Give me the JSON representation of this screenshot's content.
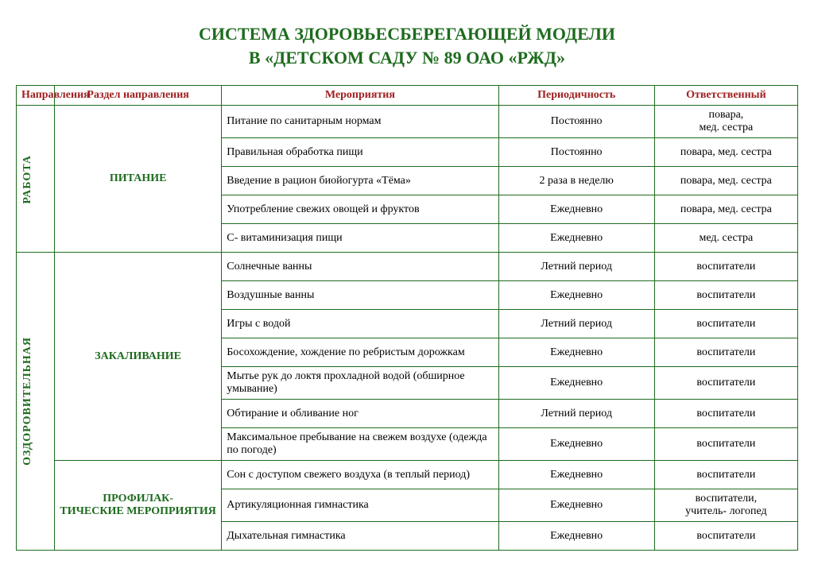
{
  "colors": {
    "title": "#1e6b1e",
    "header_text": "#a02020",
    "border": "#1e6b1e",
    "section_text": "#1e6b1e",
    "body_text": "#000000",
    "background": "#ffffff"
  },
  "title_line1": "СИСТЕМА ЗДОРОВЬЕСБЕРЕГАЮЩЕЙ МОДЕЛИ",
  "title_line2": "В «ДЕТСКОМ САДУ № 89 ОАО «РЖД»",
  "headers": {
    "direction": "Направления",
    "section": "Раздел направления",
    "activity": "Мероприятия",
    "period": "Периодичность",
    "responsible": "Ответственный"
  },
  "direction_labels": {
    "top": "РАБОТА",
    "bottom": "ОЗДОРОВИТЕЛЬНАЯ"
  },
  "sections": {
    "s1": "ПИТАНИЕ",
    "s2": "ЗАКАЛИВАНИЕ",
    "s3": "ПРОФИЛАК-\nТИЧЕСКИЕ МЕРОПРИЯТИЯ"
  },
  "rows": [
    {
      "activity": "Питание по санитарным нормам",
      "period": "Постоянно",
      "resp": "повара,\nмед. сестра"
    },
    {
      "activity": "Правильная обработка пищи",
      "period": "Постоянно",
      "resp": "повара, мед. сестра"
    },
    {
      "activity": "Введение в рацион биойогурта «Тёма»",
      "period": "2 раза в неделю",
      "resp": "повара, мед. сестра"
    },
    {
      "activity": "Употребление свежих овощей и фруктов",
      "period": "Ежедневно",
      "resp": "повара, мед. сестра"
    },
    {
      "activity": "С- витаминизация пищи",
      "period": "Ежедневно",
      "resp": "мед. сестра"
    },
    {
      "activity": "Солнечные  ванны",
      "period": "Летний период",
      "resp": "воспитатели"
    },
    {
      "activity": "Воздушные ванны",
      "period": "Ежедневно",
      "resp": "воспитатели"
    },
    {
      "activity": "Игры с водой",
      "period": "Летний период",
      "resp": "воспитатели"
    },
    {
      "activity": "Босохождение, хождение по ребристым дорожкам",
      "period": "Ежедневно",
      "resp": "воспитатели"
    },
    {
      "activity": "Мытье рук до локтя прохладной водой (обширное умывание)",
      "period": "Ежедневно",
      "resp": "воспитатели"
    },
    {
      "activity": "Обтирание и обливание ног",
      "period": "Летний период",
      "resp": "воспитатели"
    },
    {
      "activity": "Максимальное пребывание на свежем воздухе (одежда по погоде)",
      "period": "Ежедневно",
      "resp": "воспитатели"
    },
    {
      "activity": "Сон с доступом свежего воздуха (в теплый период)",
      "period": "Ежедневно",
      "resp": "воспитатели"
    },
    {
      "activity": "Артикуляционная гимнастика",
      "period": "Ежедневно",
      "resp": "воспитатели,\nучитель- логопед"
    },
    {
      "activity": "Дыхательная гимнастика",
      "period": "Ежедневно",
      "resp": "воспитатели"
    }
  ]
}
